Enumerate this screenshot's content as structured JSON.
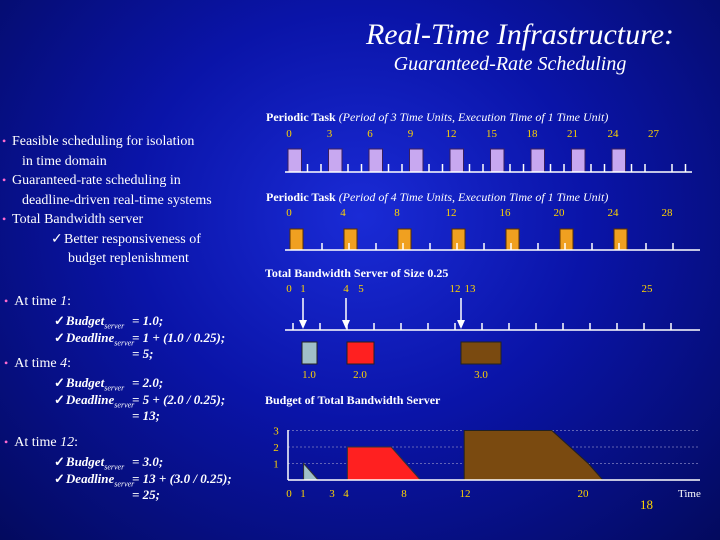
{
  "header": {
    "title": "Real-Time Infrastructure:",
    "subtitle": "Guaranteed-Rate Scheduling"
  },
  "bullets": {
    "b1_line1": "Feasible scheduling for isolation",
    "b1_line2": "in time domain",
    "b2_line1": "Guaranteed-rate scheduling in",
    "b2_line2": "deadline-driven real-time systems",
    "b3": "Total Bandwidth server",
    "check_mark": "✓",
    "b3_sub_line1": "Better responsiveness of",
    "b3_sub_line2": "budget replenishment"
  },
  "time_blocks": [
    {
      "label": "At time ",
      "time": "1",
      "colon": ":",
      "lines": [
        {
          "name": "Budget",
          "sub": "server",
          "expr": "= 1.0;"
        },
        {
          "name": "Deadline",
          "sub": "server",
          "expr": "= 1 + (1.0 / 0.25);"
        },
        {
          "name": "",
          "sub": "",
          "expr": "= 5;"
        }
      ]
    },
    {
      "label": "At time ",
      "time": "4",
      "colon": ":",
      "lines": [
        {
          "name": "Budget",
          "sub": "server",
          "expr": "= 2.0;"
        },
        {
          "name": "Deadline",
          "sub": "server",
          "expr": "= 5 + (2.0 / 0.25);"
        },
        {
          "name": "",
          "sub": "",
          "expr": "= 13;"
        }
      ]
    },
    {
      "label": "At time ",
      "time": "12",
      "colon": ":",
      "lines": [
        {
          "name": "Budget",
          "sub": "server",
          "expr": "= 3.0;"
        },
        {
          "name": "Deadline",
          "sub": "server",
          "expr": "= 13 + (3.0 / 0.25);"
        },
        {
          "name": "",
          "sub": "",
          "expr": "= 25;"
        }
      ]
    }
  ],
  "task1": {
    "title_bold": "Periodic Task",
    "title_paren": "(Period of 3 Time Units, Execution Time of 1 Time Unit)",
    "ticks": [
      "0",
      "3",
      "6",
      "9",
      "12",
      "15",
      "18",
      "21",
      "24",
      "27"
    ],
    "color": "#c8a8f0"
  },
  "task2": {
    "title_bold": "Periodic Task",
    "title_paren": "(Period of 4 Time Units, Execution Time of 1 Time Unit)",
    "ticks": [
      "0",
      "4",
      "8",
      "12",
      "16",
      "20",
      "24",
      "28"
    ],
    "color": "#f0a020"
  },
  "server": {
    "title": "Total Bandwidth Server of  Size 0.25",
    "ticks": [
      "0",
      "1",
      "4",
      "5",
      "12",
      "13",
      "25"
    ],
    "jobs": [
      {
        "label": "1.0",
        "color": "#a0c0c8"
      },
      {
        "label": "2.0",
        "color": "#ff2020"
      },
      {
        "label": "3.0",
        "color": "#7a4a10"
      }
    ]
  },
  "budget_chart": {
    "title": "Budget of Total Bandwidth Server",
    "y_ticks": [
      "3",
      "2",
      "1"
    ],
    "x_ticks": [
      "0",
      "1",
      "3",
      "4",
      "8",
      "12",
      "20"
    ],
    "x_unit": "Time"
  },
  "slide_number": "18"
}
